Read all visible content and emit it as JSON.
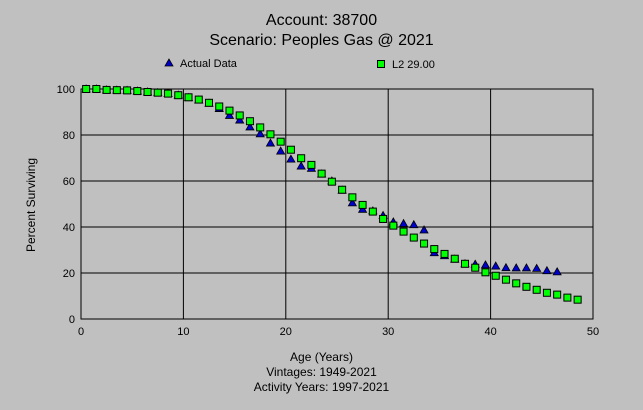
{
  "chart_data": {
    "type": "scatter",
    "title": "Account: 38700",
    "subtitle": "Scenario: Peoples Gas @ 2021",
    "xlabel": "Age (Years)",
    "ylabel": "Percent Surviving",
    "notes": [
      "Vintages: 1949-2021",
      "Activity Years: 1997-2021"
    ],
    "xlim": [
      0,
      50
    ],
    "ylim": [
      0,
      100
    ],
    "xticks": [
      0,
      10,
      20,
      30,
      40,
      50
    ],
    "yticks": [
      0,
      20,
      40,
      60,
      80,
      100
    ],
    "grid": true,
    "legend_position": "top",
    "series": [
      {
        "name": "Actual Data",
        "marker": "triangle",
        "color": "#0000cc",
        "x": [
          0.5,
          1.5,
          2.5,
          3.5,
          4.5,
          5.5,
          6.5,
          7.5,
          8.5,
          9.5,
          10.5,
          11.5,
          12.5,
          13.5,
          14.5,
          15.5,
          16.5,
          17.5,
          18.5,
          19.5,
          20.5,
          21.5,
          22.5,
          23.5,
          24.5,
          25.5,
          26.5,
          27.5,
          28.5,
          29.5,
          30.5,
          31.5,
          32.5,
          33.5,
          34.5,
          35.5,
          36.5,
          37.5,
          38.5,
          39.5,
          40.5,
          41.5,
          42.5,
          43.5,
          44.5,
          45.5,
          46.5
        ],
        "y": [
          100,
          100,
          99.6,
          99.5,
          99.4,
          99.1,
          98.7,
          98.4,
          98,
          97.3,
          96.2,
          95.2,
          93.8,
          91.5,
          88.5,
          86.5,
          83.5,
          80.5,
          76.5,
          73,
          69.5,
          66.5,
          65.5,
          63,
          60,
          56,
          50.5,
          47.7,
          47,
          45,
          42.2,
          41.5,
          41,
          38.7,
          28.8,
          27.5,
          26,
          24,
          23.8,
          23.5,
          23,
          22.3,
          22.2,
          22.2,
          22,
          21,
          20.5
        ]
      },
      {
        "name": "L2 29.00",
        "marker": "square",
        "color": "#00ff00",
        "x": [
          0.5,
          1.5,
          2.5,
          3.5,
          4.5,
          5.5,
          6.5,
          7.5,
          8.5,
          9.5,
          10.5,
          11.5,
          12.5,
          13.5,
          14.5,
          15.5,
          16.5,
          17.5,
          18.5,
          19.5,
          20.5,
          21.5,
          22.5,
          23.5,
          24.5,
          25.5,
          26.5,
          27.5,
          28.5,
          29.5,
          30.5,
          31.5,
          32.5,
          33.5,
          34.5,
          35.5,
          36.5,
          37.5,
          38.5,
          39.5,
          40.5,
          41.5,
          42.5,
          43.5,
          44.5,
          45.5,
          46.5,
          47.5,
          48.5
        ],
        "y": [
          100,
          100,
          99.6,
          99.5,
          99.4,
          99.1,
          98.7,
          98.4,
          98,
          97.3,
          96.4,
          95.4,
          94,
          92.4,
          90.6,
          88.5,
          86,
          83.3,
          80.3,
          77.1,
          73.6,
          69.9,
          67,
          63.2,
          59.7,
          56.2,
          52.9,
          49.6,
          46.7,
          43.5,
          40.6,
          38,
          35.4,
          32.8,
          30.4,
          28.3,
          26.2,
          24,
          22.3,
          20.3,
          18.8,
          17.1,
          15.5,
          14,
          12.7,
          11.4,
          10.6,
          9.3,
          8.4
        ]
      }
    ]
  }
}
